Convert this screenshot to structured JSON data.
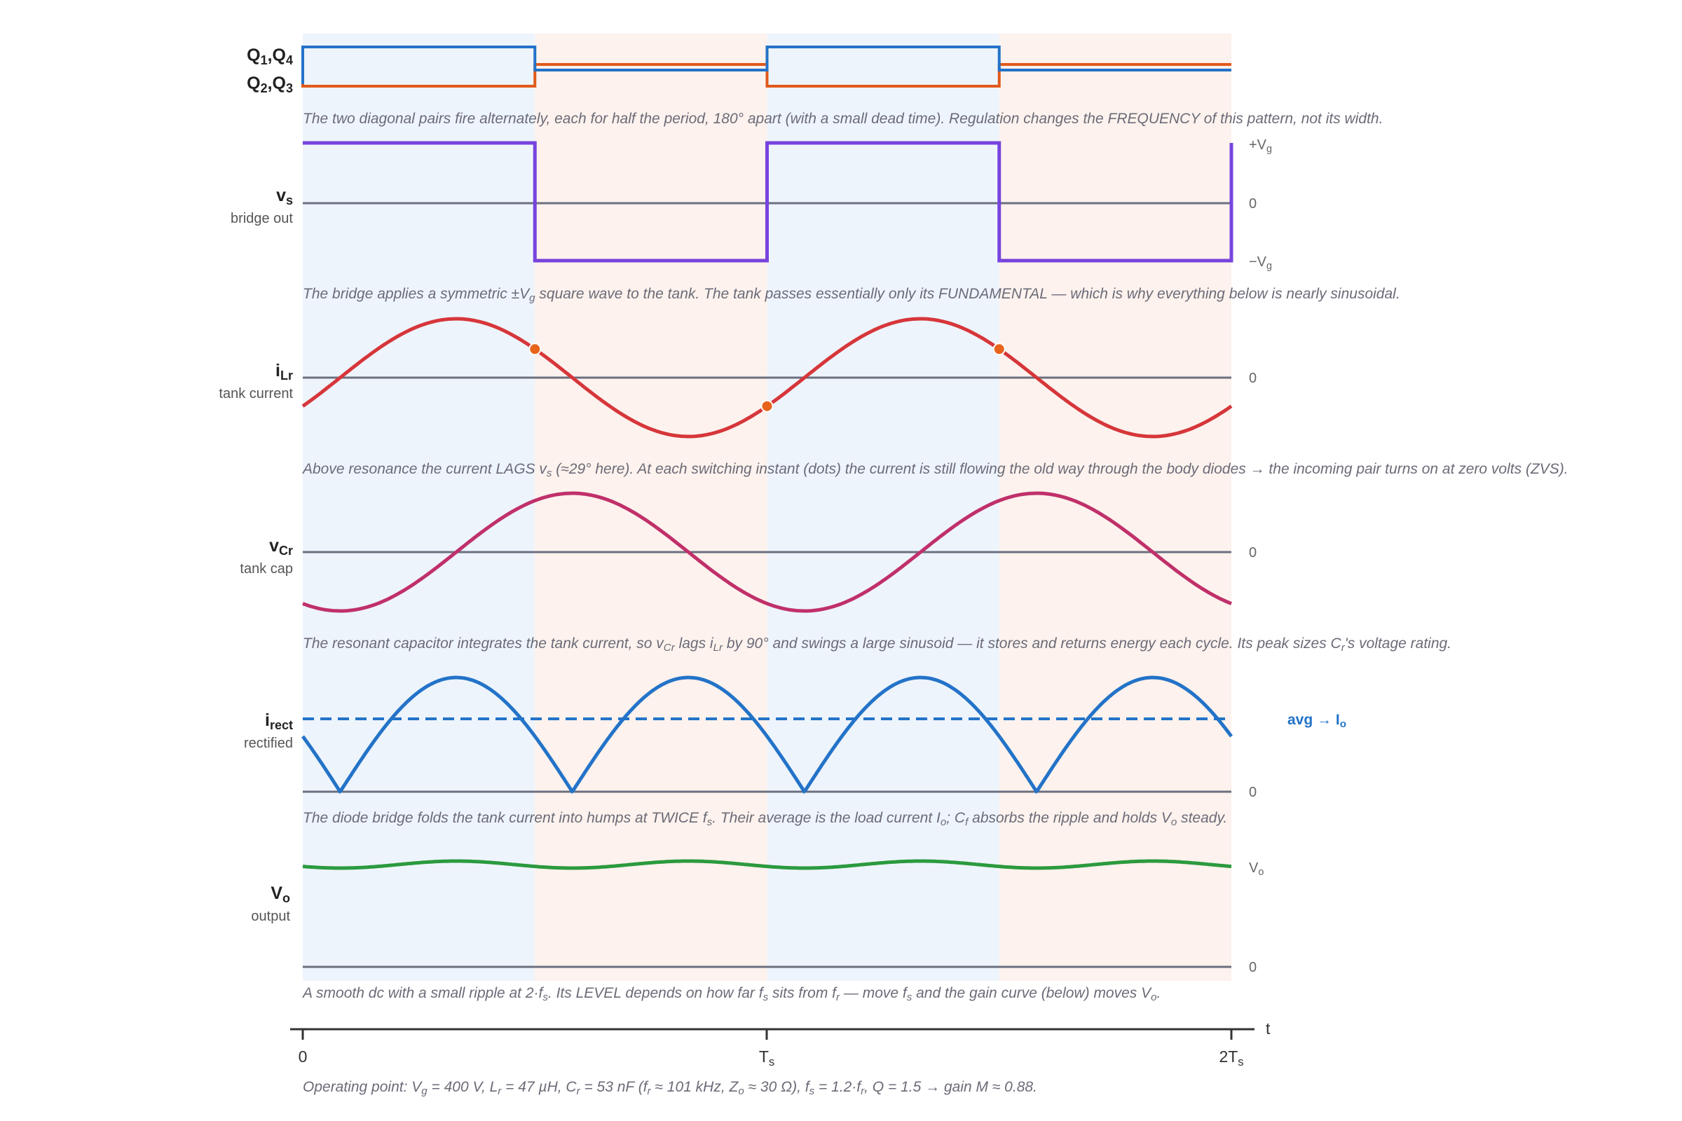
{
  "panels": {
    "gates": {
      "label_q14": [
        "Q",
        "1",
        ",Q",
        "4"
      ],
      "label_q23": [
        "Q",
        "2",
        ",Q",
        "3"
      ],
      "caption": "The two diagonal pairs fire alternately, each for half the period, 180° apart (with a small dead time). Regulation changes the FREQUENCY of this pattern, not its width.",
      "q14_color": "#2373c8",
      "q23_color": "#e05a1a"
    },
    "vs": {
      "name": [
        "v",
        "s"
      ],
      "sub": "bridge out",
      "levels": {
        "pos": [
          "+V",
          "g"
        ],
        "zero": "0",
        "neg": [
          "−V",
          "g"
        ]
      },
      "caption": [
        "The bridge applies a symmetric ±V",
        "g",
        " square wave to the tank. The tank passes essentially only its FUNDAMENTAL — which is why everything below is nearly sinusoidal."
      ],
      "color": "#7744dd"
    },
    "iLr": {
      "name": [
        "i",
        "Lr"
      ],
      "sub": "tank current",
      "zero": "0",
      "caption": [
        "Above resonance the current LAGS v",
        "s",
        " (≈29° here). At each switching instant (dots) the current is still flowing the old way through the body diodes → the incoming pair turns on at zero volts (ZVS)."
      ],
      "color": "#d6363a",
      "dot_color": "#e8641c",
      "phase_lag_deg": 29
    },
    "vCr": {
      "name": [
        "v",
        "Cr"
      ],
      "sub": "tank cap",
      "zero": "0",
      "caption": [
        "The resonant capacitor integrates the tank current, so v",
        "Cr",
        " lags i",
        "Lr",
        " by 90° and swings a large sinusoid — it stores and returns energy each cycle. Its peak sizes C",
        "r",
        "'s voltage rating."
      ],
      "color": "#c0306a"
    },
    "irect": {
      "name": [
        "i",
        "rect"
      ],
      "sub": "rectified",
      "zero": "0",
      "avg_label": [
        "avg → I",
        "o"
      ],
      "caption": [
        "The diode bridge folds the tank current into humps at TWICE f",
        "s",
        ". Their average is the load current I",
        "o",
        "; C",
        "f",
        " absorbs the ripple and holds V",
        "o",
        " steady."
      ],
      "color": "#2373c8"
    },
    "vo": {
      "name": [
        "V",
        "o"
      ],
      "sub": "output",
      "level": [
        "V",
        "o"
      ],
      "zero": "0",
      "caption": [
        "A smooth dc with a small ripple at 2·f",
        "s",
        ". Its LEVEL depends on how far f",
        "s",
        " sits from f",
        "r",
        " — move f",
        "s",
        " and the gain curve (below) moves V",
        "o",
        "."
      ],
      "color": "#2b9a3e"
    }
  },
  "time_axis": {
    "label": "t",
    "ticks": [
      [
        "0"
      ],
      [
        "T",
        "s"
      ],
      [
        "2T",
        "s"
      ]
    ]
  },
  "operating_point": [
    "Operating point: V",
    "g",
    " = 400 V, L",
    "r",
    " = 47 µH, C",
    "r",
    " = 53 nF (f",
    "r",
    " ≈ 101 kHz, Z",
    "o",
    " ≈ 30 Ω), f",
    "s",
    " = 1.2·f",
    "r",
    ", Q = 1.5 → gain M ≈ 0.88."
  ],
  "colors": {
    "shade_first_half": "#eef4fc",
    "shade_second_half": "#fdf2ed",
    "baseline": "#6b6f80"
  }
}
